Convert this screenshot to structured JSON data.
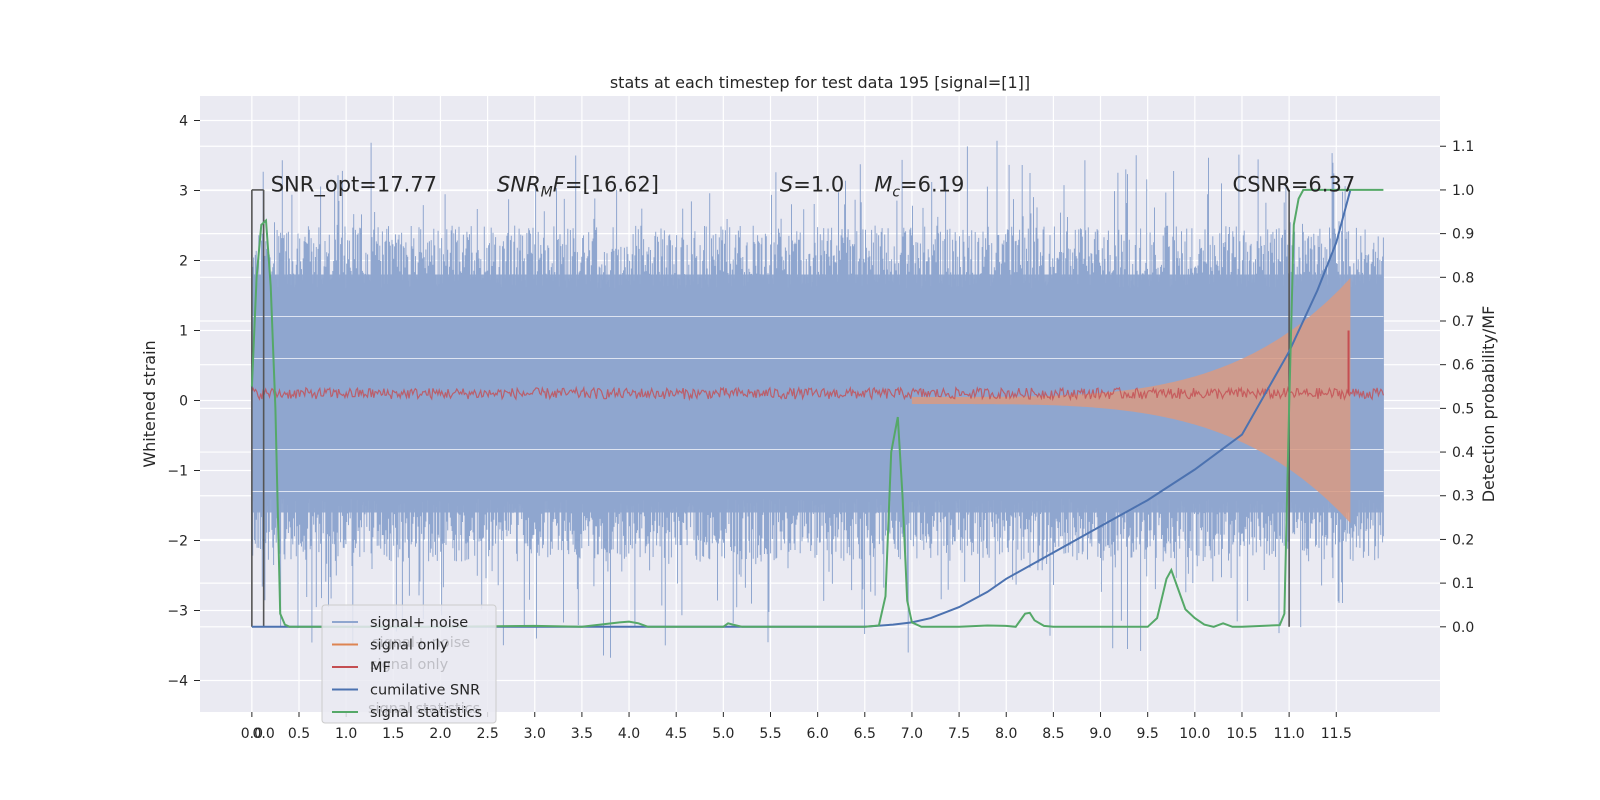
{
  "chart_data": {
    "type": "line",
    "title": "stats at each timestep for test data 195 [signal=[1]]",
    "ylabel": "Whitened strain",
    "y2label": "Detection probability/MF",
    "xlim": [
      -0.55,
      12.6
    ],
    "ylim": [
      -4.45,
      4.35
    ],
    "y2lim": [
      -0.195,
      1.215
    ],
    "x_ticks": [
      0.0,
      0.5,
      1.0,
      1.5,
      2.0,
      2.5,
      3.0,
      3.5,
      4.0,
      4.5,
      5.0,
      5.5,
      6.0,
      6.5,
      7.0,
      7.5,
      8.0,
      8.5,
      9.0,
      9.5,
      10.0,
      10.5,
      11.0,
      11.5
    ],
    "extra_x_tick": 0.125,
    "y_ticks": [
      4,
      3,
      2,
      1,
      0,
      -1,
      -2,
      -3,
      -4
    ],
    "y_tick_labels": [
      "4",
      "3",
      "2",
      "1",
      "0",
      "−1",
      "−2",
      "−3",
      "−4"
    ],
    "y2_ticks": [
      1.1,
      1.0,
      0.9,
      0.8,
      0.7,
      0.6,
      0.5,
      0.4,
      0.3,
      0.2,
      0.1,
      0.0
    ],
    "grid": true,
    "legend_position": "lower-left",
    "colors": {
      "signal_noise": "#8fa6cf",
      "signal_only": "#dd8452",
      "mf": "#c44e52",
      "cumulative_snr": "#4c72b0",
      "signal_statistics": "#55a868",
      "background": "#eaeaf2",
      "grid": "#ffffff",
      "vline": "#555555"
    },
    "legend": [
      {
        "label": "signal+ noise",
        "color": "#8fa6cf"
      },
      {
        "label": "signal only",
        "color": "#dd8452"
      },
      {
        "label": "MF",
        "color": "#c44e52"
      },
      {
        "label": "cumilative SNR",
        "color": "#4c72b0"
      },
      {
        "label": "signal statistics",
        "color": "#55a868"
      }
    ],
    "legend_ghost": [
      {
        "label": "signal+ noise"
      },
      {
        "label": "signal only"
      },
      {
        "label": "signal statistics"
      }
    ],
    "annotations": [
      {
        "text": "SNR_opt=17.77",
        "x": 0.2,
        "y": 3.1
      },
      {
        "text": "SNR_MF=[16.62]",
        "x": 2.6,
        "y": 3.1
      },
      {
        "text": "S=1.0",
        "x": 5.6,
        "y": 3.1
      },
      {
        "text": "M_c=6.19",
        "x": 6.6,
        "y": 3.1
      },
      {
        "text": "CSNR=6.37",
        "x": 10.4,
        "y": 3.1
      }
    ],
    "vlines": [
      0.0,
      0.125,
      11.0
    ],
    "signal_noise": {
      "x_start": 0.0,
      "x_end": 12.0,
      "y_band_low": -1.6,
      "y_band_high": 1.8
    },
    "signal_only": {
      "x_start": 7.0,
      "x_end": 11.65,
      "amp_start": 0.05,
      "amp_end": 1.75
    },
    "mf": {
      "x_start": 0.0,
      "x_end": 12.0,
      "y_baseline": 0.1,
      "spike_x": 11.63,
      "spike_y": 1.0
    },
    "cumulative_snr": {
      "x": [
        0.0,
        0.5,
        1.0,
        2.0,
        3.0,
        4.0,
        5.0,
        6.0,
        6.5,
        6.8,
        7.0,
        7.2,
        7.5,
        7.8,
        8.0,
        8.5,
        9.0,
        9.5,
        10.0,
        10.5,
        11.0,
        11.3,
        11.5,
        11.65
      ],
      "y": [
        0.0,
        0.0,
        0.0,
        0.0,
        0.0,
        0.0,
        0.0,
        0.0,
        0.0,
        0.005,
        0.01,
        0.02,
        0.045,
        0.08,
        0.11,
        0.17,
        0.23,
        0.29,
        0.36,
        0.44,
        0.63,
        0.77,
        0.88,
        1.0
      ]
    },
    "signal_statistics": {
      "x": [
        0.0,
        0.05,
        0.1,
        0.15,
        0.2,
        0.25,
        0.3,
        0.35,
        0.4,
        0.5,
        1.0,
        2.0,
        3.0,
        3.5,
        3.9,
        4.0,
        4.1,
        4.2,
        5.0,
        5.05,
        5.1,
        5.2,
        6.0,
        6.5,
        6.65,
        6.72,
        6.78,
        6.85,
        6.9,
        6.95,
        7.0,
        7.1,
        7.5,
        7.8,
        8.0,
        8.1,
        8.2,
        8.25,
        8.3,
        8.4,
        8.5,
        9.0,
        9.5,
        9.6,
        9.7,
        9.75,
        9.8,
        9.9,
        10.0,
        10.1,
        10.2,
        10.3,
        10.4,
        10.5,
        10.9,
        10.95,
        11.0,
        11.05,
        11.1,
        11.15,
        11.2,
        11.5,
        12.0
      ],
      "y": [
        0.55,
        0.8,
        0.92,
        0.93,
        0.78,
        0.5,
        0.03,
        0.005,
        0.0,
        0.0,
        0.0,
        0.0,
        0.002,
        0.0,
        0.01,
        0.012,
        0.008,
        0.0,
        0.0,
        0.008,
        0.005,
        0.0,
        0.0,
        0.0,
        0.003,
        0.07,
        0.4,
        0.48,
        0.3,
        0.06,
        0.01,
        0.0,
        0.0,
        0.003,
        0.002,
        0.0,
        0.03,
        0.032,
        0.015,
        0.002,
        0.0,
        0.0,
        0.0,
        0.02,
        0.11,
        0.13,
        0.1,
        0.04,
        0.02,
        0.005,
        0.0,
        0.008,
        0.0,
        0.0,
        0.004,
        0.03,
        0.5,
        0.92,
        0.98,
        1.0,
        1.0,
        1.0,
        1.0
      ]
    }
  }
}
